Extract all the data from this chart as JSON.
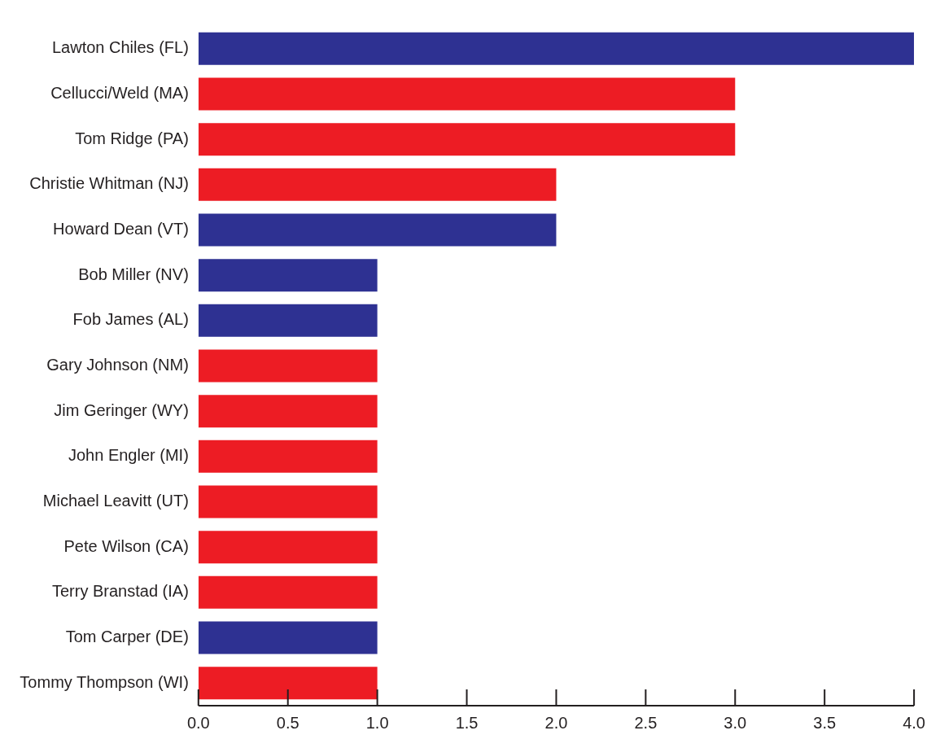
{
  "chart_data": {
    "type": "bar",
    "orientation": "horizontal",
    "categories": [
      "Lawton Chiles (FL)",
      "Cellucci/Weld (MA)",
      "Tom Ridge (PA)",
      "Christie Whitman (NJ)",
      "Howard Dean (VT)",
      "Bob Miller (NV)",
      "Fob James (AL)",
      "Gary Johnson (NM)",
      "Jim Geringer (WY)",
      "John Engler (MI)",
      "Michael Leavitt (UT)",
      "Pete Wilson (CA)",
      "Terry Branstad (IA)",
      "Tom Carper (DE)",
      "Tommy Thompson (WI)"
    ],
    "values": [
      4,
      3,
      3,
      2,
      2,
      1,
      1,
      1,
      1,
      1,
      1,
      1,
      1,
      1,
      1
    ],
    "colors": [
      "#2e3192",
      "#ed1c24",
      "#ed1c24",
      "#ed1c24",
      "#2e3192",
      "#2e3192",
      "#2e3192",
      "#ed1c24",
      "#ed1c24",
      "#ed1c24",
      "#ed1c24",
      "#ed1c24",
      "#ed1c24",
      "#2e3192",
      "#ed1c24"
    ],
    "xlim": [
      0,
      4
    ],
    "xticks": [
      {
        "value": 0,
        "label": "0.0"
      },
      {
        "value": 0.5,
        "label": "0.5"
      },
      {
        "value": 1,
        "label": "1.0"
      },
      {
        "value": 1.5,
        "label": "1.5"
      },
      {
        "value": 2,
        "label": "2.0"
      },
      {
        "value": 2.5,
        "label": "2.5"
      },
      {
        "value": 3,
        "label": "3.0"
      },
      {
        "value": 3.5,
        "label": "3.5"
      },
      {
        "value": 4,
        "label": "4.0"
      }
    ],
    "grid": false,
    "legend": false
  }
}
